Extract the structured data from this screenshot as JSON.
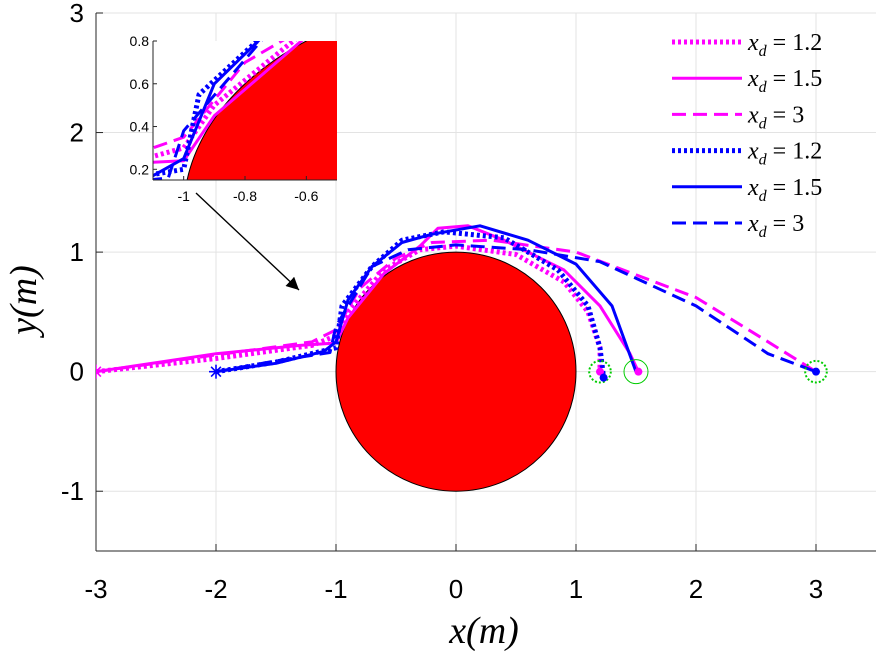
{
  "chart_data": {
    "type": "line",
    "xlabel": "x(m)",
    "ylabel": "y(m)",
    "xlim": [
      -3,
      3.5
    ],
    "ylim": [
      -1.5,
      3
    ],
    "xticks": [
      -3,
      -2,
      -1,
      0,
      1,
      2,
      3
    ],
    "yticks": [
      -1,
      0,
      1,
      2,
      3
    ],
    "grid": true,
    "legend_position": "top-right",
    "obstacle": {
      "center": [
        0,
        0
      ],
      "radius": 1,
      "color": "#ff0000"
    },
    "colors": {
      "magenta": "#ff00ff",
      "blue": "#0000ff",
      "obstacle": "#ff0000",
      "target": "#00cc00"
    },
    "series": [
      {
        "name": "x_d = 1.2",
        "color": "#ff00ff",
        "style": "dotted",
        "points": [
          [
            -3,
            0
          ],
          [
            -2,
            0.11
          ],
          [
            -1.2,
            0.22
          ],
          [
            -1,
            0.3
          ],
          [
            -0.9,
            0.5
          ],
          [
            -0.6,
            0.85
          ],
          [
            -0.3,
            1.02
          ],
          [
            0,
            1.05
          ],
          [
            0.5,
            0.98
          ],
          [
            0.9,
            0.75
          ],
          [
            1.1,
            0.5
          ],
          [
            1.2,
            0.2
          ],
          [
            1.2,
            0
          ]
        ]
      },
      {
        "name": "x_d = 1.5",
        "color": "#ff00ff",
        "style": "solid",
        "points": [
          [
            -3,
            0
          ],
          [
            -2,
            0.15
          ],
          [
            -1.3,
            0.22
          ],
          [
            -1,
            0.24
          ],
          [
            -0.9,
            0.45
          ],
          [
            -0.6,
            0.82
          ],
          [
            -0.3,
            1.05
          ],
          [
            -0.15,
            1.2
          ],
          [
            0.1,
            1.22
          ],
          [
            0.4,
            1.1
          ],
          [
            0.9,
            0.85
          ],
          [
            1.2,
            0.55
          ],
          [
            1.45,
            0.15
          ],
          [
            1.52,
            0
          ]
        ]
      },
      {
        "name": "x_d = 3",
        "color": "#ff00ff",
        "style": "dashed",
        "points": [
          [
            -3,
            0
          ],
          [
            -2,
            0.14
          ],
          [
            -1.2,
            0.25
          ],
          [
            -1,
            0.35
          ],
          [
            -0.8,
            0.7
          ],
          [
            -0.5,
            0.95
          ],
          [
            -0.2,
            1.08
          ],
          [
            0.3,
            1.1
          ],
          [
            1,
            1
          ],
          [
            2,
            0.62
          ],
          [
            2.6,
            0.25
          ],
          [
            3,
            0
          ]
        ]
      },
      {
        "name": "x_d = 1.2",
        "color": "#0000ff",
        "style": "dotted",
        "points": [
          [
            -2,
            0
          ],
          [
            -1.5,
            0.08
          ],
          [
            -1,
            0.2
          ],
          [
            -0.95,
            0.55
          ],
          [
            -0.7,
            0.88
          ],
          [
            -0.45,
            1.1
          ],
          [
            -0.1,
            1.17
          ],
          [
            0.4,
            1.12
          ],
          [
            0.85,
            0.85
          ],
          [
            1.1,
            0.55
          ],
          [
            1.2,
            0.2
          ],
          [
            1.23,
            -0.05
          ]
        ]
      },
      {
        "name": "x_d = 1.5",
        "color": "#0000ff",
        "style": "solid",
        "points": [
          [
            -2,
            0
          ],
          [
            -1.5,
            0.07
          ],
          [
            -1.1,
            0.17
          ],
          [
            -1,
            0.25
          ],
          [
            -0.9,
            0.6
          ],
          [
            -0.7,
            0.88
          ],
          [
            -0.45,
            1.08
          ],
          [
            -0.2,
            1.15
          ],
          [
            0.2,
            1.22
          ],
          [
            0.6,
            1.1
          ],
          [
            1,
            0.9
          ],
          [
            1.3,
            0.55
          ],
          [
            1.5,
            0
          ]
        ]
      },
      {
        "name": "x_d = 3",
        "color": "#0000ff",
        "style": "dashed",
        "points": [
          [
            -2,
            0
          ],
          [
            -1.5,
            0.09
          ],
          [
            -1.05,
            0.16
          ],
          [
            -1,
            0.38
          ],
          [
            -0.7,
            0.88
          ],
          [
            -0.4,
            1.02
          ],
          [
            0,
            1.06
          ],
          [
            0.6,
            1.02
          ],
          [
            1.2,
            0.92
          ],
          [
            2,
            0.55
          ],
          [
            2.6,
            0.15
          ],
          [
            3,
            0
          ]
        ]
      }
    ],
    "start_markers": [
      {
        "x": -3,
        "y": 0,
        "color": "#ff00ff",
        "symbol": "asterisk"
      },
      {
        "x": -2,
        "y": 0,
        "color": "#0000ff",
        "symbol": "asterisk"
      }
    ],
    "end_markers": [
      {
        "x": 1.2,
        "y": 0,
        "color": "#ff00ff"
      },
      {
        "x": 1.23,
        "y": -0.05,
        "color": "#0000ff"
      },
      {
        "x": 1.52,
        "y": 0,
        "color": "#ff00ff"
      },
      {
        "x": 3,
        "y": 0,
        "color": "#0000ff"
      }
    ],
    "target_circles": [
      {
        "x": 1.2,
        "y": 0,
        "r": 0.09,
        "style": "dotted"
      },
      {
        "x": 1.5,
        "y": 0,
        "r": 0.1,
        "style": "solid"
      },
      {
        "x": 3,
        "y": 0,
        "r": 0.09,
        "style": "dotted"
      }
    ],
    "inset": {
      "xlim": [
        -1.1,
        -0.5
      ],
      "ylim": [
        0.15,
        0.8
      ],
      "xticks": [
        -1,
        -0.8,
        -0.6
      ],
      "yticks": [
        0.2,
        0.4,
        0.6,
        0.8
      ]
    }
  }
}
